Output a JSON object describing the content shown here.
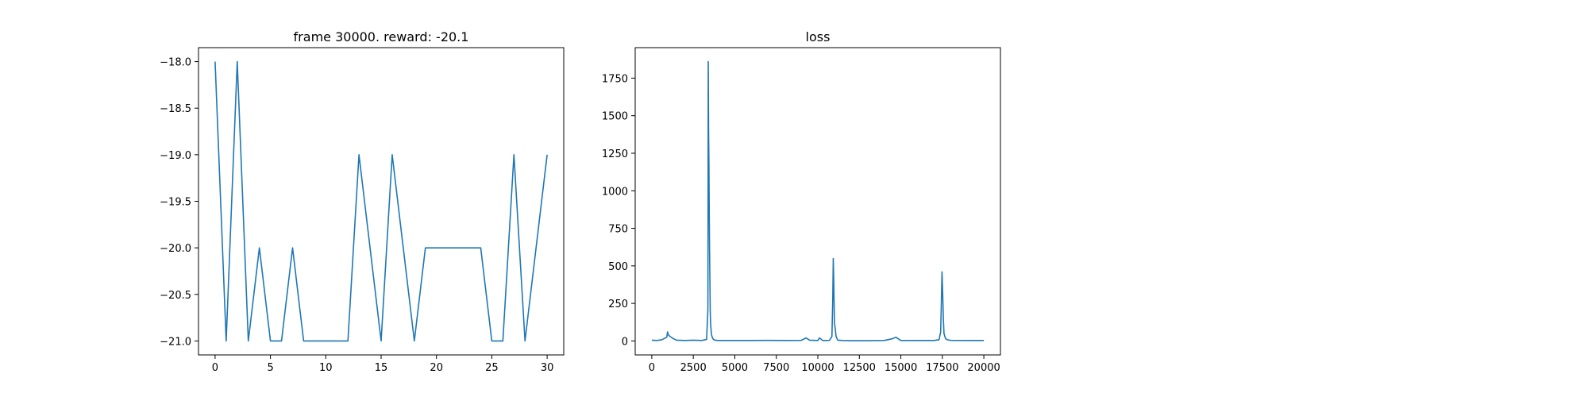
{
  "chart_data": [
    {
      "type": "line",
      "title": "frame 30000. reward: -20.1",
      "xlabel": "",
      "ylabel": "",
      "xlim": [
        -1.5,
        31.5
      ],
      "ylim": [
        -21.15,
        -17.85
      ],
      "xticks": [
        0,
        5,
        10,
        15,
        20,
        25,
        30
      ],
      "xtick_labels": [
        "0",
        "5",
        "10",
        "15",
        "20",
        "25",
        "30"
      ],
      "yticks": [
        -18.0,
        -18.5,
        -19.0,
        -19.5,
        -20.0,
        -20.5,
        -21.0
      ],
      "ytick_labels": [
        "−18.0",
        "−18.5",
        "−19.0",
        "−19.5",
        "−20.0",
        "−20.5",
        "−21.0"
      ],
      "grid": false,
      "line_color": "#1f77b4",
      "series": [
        {
          "x": [
            0,
            1,
            2,
            3,
            4,
            5,
            6,
            7,
            8,
            9,
            10,
            11,
            12,
            13,
            14,
            15,
            16,
            17,
            18,
            19,
            20,
            21,
            22,
            23,
            24,
            25,
            26,
            27,
            28,
            29,
            30
          ],
          "values": [
            -18,
            -21,
            -18,
            -21,
            -20,
            -21,
            -21,
            -20,
            -21,
            -21,
            -21,
            -21,
            -21,
            -19,
            -20,
            -21,
            -19,
            -20,
            -21,
            -20,
            -20,
            -20,
            -20,
            -20,
            -20,
            -21,
            -21,
            -19,
            -21,
            -20,
            -19
          ]
        }
      ]
    },
    {
      "type": "line",
      "title": "loss",
      "xlabel": "",
      "ylabel": "",
      "xlim": [
        -1000,
        21000
      ],
      "ylim": [
        -93,
        1953
      ],
      "xticks": [
        0,
        2500,
        5000,
        7500,
        10000,
        12500,
        15000,
        17500,
        20000
      ],
      "xtick_labels": [
        "0",
        "2500",
        "5000",
        "7500",
        "10000",
        "12500",
        "15000",
        "17500",
        "20000"
      ],
      "yticks": [
        0,
        250,
        500,
        750,
        1000,
        1250,
        1500,
        1750
      ],
      "ytick_labels": [
        "0",
        "250",
        "500",
        "750",
        "1000",
        "1250",
        "1500",
        "1750"
      ],
      "grid": false,
      "line_color": "#1f77b4",
      "series": [
        {
          "x": [
            0,
            300,
            600,
            900,
            950,
            1000,
            1100,
            1300,
            1500,
            2000,
            2500,
            3000,
            3300,
            3380,
            3400,
            3420,
            3440,
            3460,
            3480,
            3500,
            3520,
            3540,
            3560,
            3580,
            3600,
            3640,
            3680,
            3720,
            3760,
            3800,
            3900,
            4000,
            5000,
            6000,
            7000,
            8000,
            9000,
            9300,
            9500,
            10000,
            10100,
            10300,
            10700,
            10850,
            10900,
            10930,
            10960,
            11000,
            11050,
            11100,
            11200,
            11500,
            12000,
            13000,
            14000,
            14500,
            14700,
            15000,
            16000,
            17000,
            17300,
            17400,
            17450,
            17480,
            17520,
            17560,
            17600,
            17650,
            17700,
            17800,
            18000,
            19000,
            20000
          ],
          "values": [
            5,
            3,
            8,
            25,
            60,
            40,
            30,
            15,
            5,
            3,
            5,
            3,
            10,
            210,
            1860,
            1400,
            1200,
            850,
            600,
            400,
            200,
            120,
            90,
            60,
            40,
            25,
            15,
            10,
            8,
            5,
            4,
            3,
            3,
            3,
            4,
            3,
            4,
            20,
            5,
            3,
            20,
            3,
            4,
            30,
            280,
            550,
            400,
            120,
            80,
            30,
            5,
            3,
            2,
            2,
            3,
            15,
            25,
            3,
            3,
            3,
            8,
            60,
            300,
            460,
            320,
            150,
            50,
            30,
            15,
            8,
            4,
            3,
            3
          ]
        }
      ]
    }
  ]
}
